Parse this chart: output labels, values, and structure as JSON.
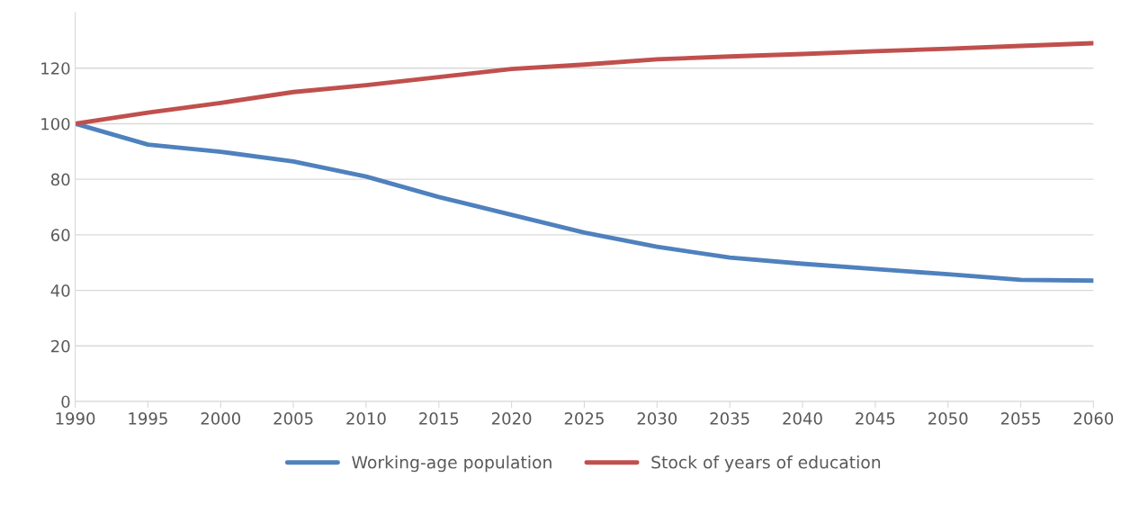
{
  "chart_data": {
    "type": "line",
    "x": [
      1990,
      1995,
      2000,
      2005,
      2010,
      2015,
      2020,
      2025,
      2030,
      2035,
      2040,
      2045,
      2050,
      2055,
      2060
    ],
    "series": [
      {
        "name": "Working-age population",
        "color": "#4f81bd",
        "values": [
          100,
          92.5,
          89.9,
          86.4,
          81,
          73.6,
          67.2,
          60.8,
          55.7,
          51.8,
          49.6,
          47.7,
          45.8,
          43.8,
          43.5
        ]
      },
      {
        "name": "Stock of years of education",
        "color": "#c0504d",
        "values": [
          100,
          104,
          107.5,
          111.4,
          113.9,
          116.8,
          119.7,
          121.3,
          123.2,
          124.2,
          125.1,
          126.1,
          127,
          128,
          129
        ]
      }
    ],
    "xlim": [
      1990,
      2060
    ],
    "xticks": [
      1990,
      1995,
      2000,
      2005,
      2010,
      2015,
      2020,
      2025,
      2030,
      2035,
      2040,
      2045,
      2050,
      2055,
      2060
    ],
    "ylim": [
      0,
      140
    ],
    "yticks": [
      0,
      20,
      40,
      60,
      80,
      100,
      120
    ],
    "grid": "y",
    "legend": "bottom",
    "marker": "none",
    "line_style": "solid"
  }
}
